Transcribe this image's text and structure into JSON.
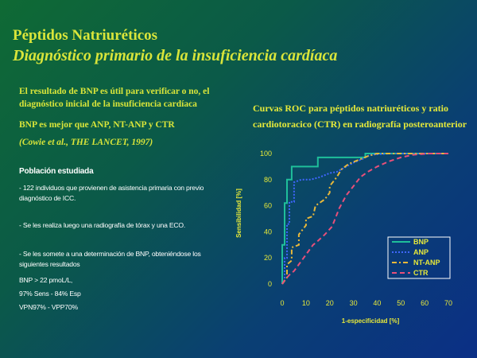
{
  "titles": {
    "main": "Péptidos Natriuréticos",
    "sub": "Diagnóstico primario de la insuficiencia cardíaca"
  },
  "left": {
    "p1": "El resultado de BNP es útil para verificar o  no,  el diagnóstico inicial de la insuficiencia cardíaca",
    "p2": "BNP es mejor que ANP, NT-ANP y CTR",
    "citation": "(Cowie et al., THE LANCET, 1997)",
    "population_heading": "Población estudiada",
    "bullet1": "-  122 individuos que provienen de asistencia primaria con previo diagnóstico de ICC.",
    "bullet2": "-  Se les realiza luego una radiografía de tórax y una ECO.",
    "bullet3": "-  Se les somete a una determinación de BNP, obteniéndose  los siguientes resultados",
    "result1": "BNP > 22 pmoL/L,",
    "result2": "97% Sens - 84% Esp",
    "result3": "VPN97% - VPP70%"
  },
  "chart_data": {
    "type": "line",
    "title": "Curvas ROC para péptidos natriuréticos y ratio cardiotoracico (CTR) en radiografía posteroanterior",
    "xlabel": "1-especificidad [%]",
    "ylabel": "Sensibilidad [%]",
    "xlim": [
      0,
      70
    ],
    "ylim": [
      0,
      100
    ],
    "xticks": [
      0,
      10,
      20,
      30,
      40,
      50,
      60,
      70
    ],
    "yticks": [
      0,
      20,
      40,
      60,
      80,
      100
    ],
    "legend_position": "bottom-right",
    "series": [
      {
        "name": "BNP",
        "color": "#1fbf9a",
        "dash": "solid",
        "x": [
          0,
          0,
          1,
          1,
          2,
          2,
          4,
          4,
          15,
          15,
          35,
          35,
          55,
          70
        ],
        "y": [
          0,
          30,
          30,
          62,
          62,
          80,
          80,
          90,
          90,
          97,
          97,
          100,
          100,
          100
        ]
      },
      {
        "name": "ANP",
        "color": "#3f66ff",
        "dash": "dotted",
        "x": [
          0,
          1,
          1,
          2,
          2,
          3,
          3,
          5,
          5,
          8,
          12,
          16,
          20,
          23,
          27,
          30,
          34,
          37,
          45,
          55,
          70
        ],
        "y": [
          0,
          3,
          20,
          20,
          46,
          46,
          63,
          63,
          78,
          80,
          80,
          82,
          85,
          86,
          90,
          93,
          96,
          99,
          100,
          100,
          100
        ]
      },
      {
        "name": "NT-ANP",
        "color": "#e8b83a",
        "dash": "dashdot",
        "x": [
          0,
          2,
          2,
          4,
          4,
          7,
          7,
          10,
          10,
          13,
          14,
          18,
          20,
          20,
          23,
          25,
          28,
          32,
          36,
          40,
          48,
          55,
          70
        ],
        "y": [
          0,
          5,
          15,
          18,
          28,
          30,
          38,
          45,
          50,
          52,
          60,
          65,
          70,
          75,
          82,
          88,
          92,
          95,
          98,
          100,
          100,
          100,
          100
        ]
      },
      {
        "name": "CTR",
        "color": "#e8507a",
        "dash": "dashed",
        "x": [
          0,
          1,
          3,
          5,
          7,
          9,
          11,
          13,
          15,
          18,
          21,
          24,
          27,
          30,
          33,
          36,
          40,
          45,
          50,
          55,
          62,
          70
        ],
        "y": [
          0,
          3,
          7,
          10,
          15,
          20,
          25,
          30,
          33,
          38,
          44,
          58,
          68,
          75,
          82,
          86,
          90,
          94,
          97,
          99,
          100,
          100
        ]
      }
    ]
  }
}
